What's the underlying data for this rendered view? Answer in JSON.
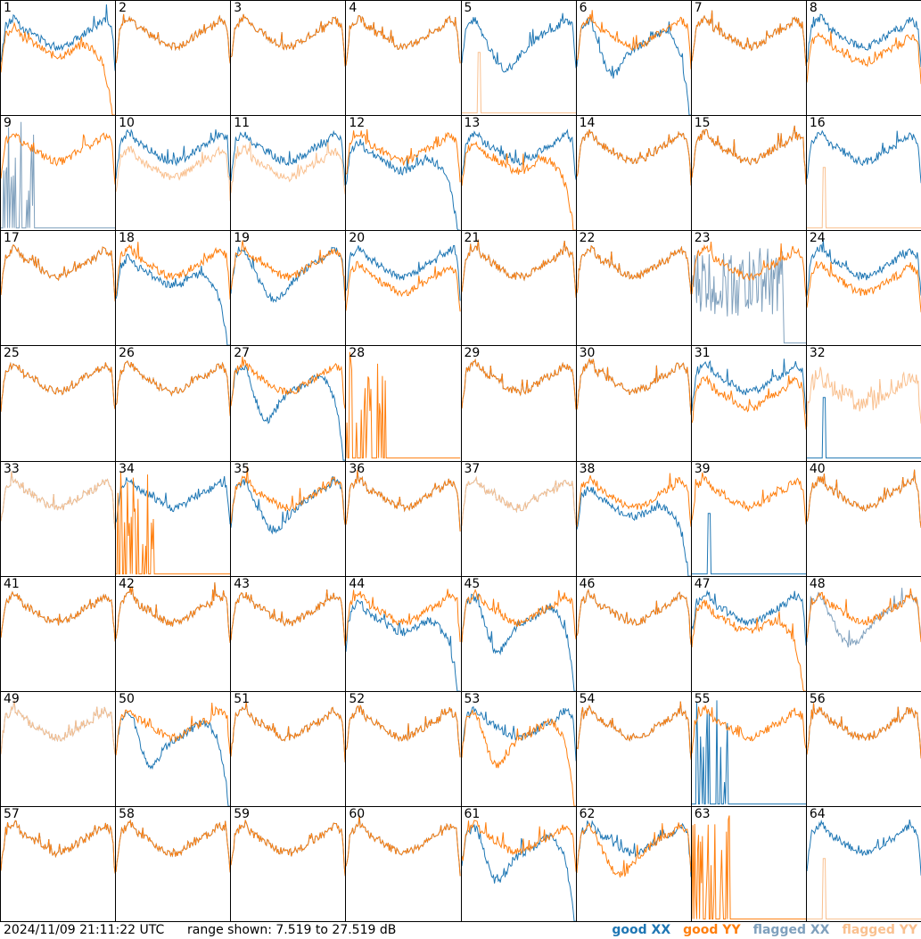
{
  "footer": {
    "timestamp": "2024/11/09 21:11:22 UTC",
    "range": "range shown: 7.519 to 27.519 dB"
  },
  "legend": {
    "good_xx": "good XX",
    "good_yy": "good YY",
    "flagged_xx": "flagged XX",
    "flagged_yy": "flagged YY"
  },
  "colors": {
    "good_xx": "#1f77b4",
    "good_yy": "#ff7f0e",
    "flagged_xx": "#7fa0bd",
    "flagged_yy": "#f9c08f"
  },
  "chart_data": {
    "type": "line",
    "grid": {
      "rows": 8,
      "cols": 8
    },
    "y_range_db": [
      7.519,
      27.519
    ],
    "panels": [
      {
        "id": "1",
        "xx": "good",
        "yy": "good",
        "yy_shape": "rolloff",
        "xx_shape": "normal"
      },
      {
        "id": "2",
        "xx": "good",
        "yy": "good"
      },
      {
        "id": "3",
        "xx": "good",
        "yy": "good"
      },
      {
        "id": "4",
        "xx": "good",
        "yy": "good"
      },
      {
        "id": "5",
        "xx": "good",
        "yy": "flagged",
        "xx_shape": "dip",
        "yy_shape": "spike"
      },
      {
        "id": "6",
        "xx": "good",
        "yy": "good",
        "xx_shape": "dip_rolloff"
      },
      {
        "id": "7",
        "xx": "good",
        "yy": "good"
      },
      {
        "id": "8",
        "xx": "good",
        "yy": "good",
        "yy_shape": "low"
      },
      {
        "id": "9",
        "xx": "flagged",
        "yy": "good",
        "xx_shape": "spikes"
      },
      {
        "id": "10",
        "xx": "good",
        "yy": "flagged",
        "yy_shape": "low"
      },
      {
        "id": "11",
        "xx": "good",
        "yy": "flagged",
        "yy_shape": "low"
      },
      {
        "id": "12",
        "xx": "good",
        "yy": "good",
        "xx_shape": "rolloff"
      },
      {
        "id": "13",
        "xx": "good",
        "yy": "good",
        "yy_shape": "rolloff"
      },
      {
        "id": "14",
        "xx": "good",
        "yy": "good"
      },
      {
        "id": "15",
        "xx": "good",
        "yy": "good"
      },
      {
        "id": "16",
        "xx": "good",
        "yy": "flagged",
        "yy_shape": "spike"
      },
      {
        "id": "17",
        "xx": "good",
        "yy": "good"
      },
      {
        "id": "18",
        "xx": "good",
        "yy": "good",
        "xx_shape": "rolloff"
      },
      {
        "id": "19",
        "xx": "good",
        "yy": "good",
        "xx_shape": "dip"
      },
      {
        "id": "20",
        "xx": "good",
        "yy": "good",
        "yy_shape": "low"
      },
      {
        "id": "21",
        "xx": "good",
        "yy": "good"
      },
      {
        "id": "22",
        "xx": "good",
        "yy": "good"
      },
      {
        "id": "23",
        "xx": "flagged",
        "yy": "good",
        "xx_shape": "noise"
      },
      {
        "id": "24",
        "xx": "good",
        "yy": "good",
        "yy_shape": "low"
      },
      {
        "id": "25",
        "xx": "good",
        "yy": "good"
      },
      {
        "id": "26",
        "xx": "good",
        "yy": "good"
      },
      {
        "id": "27",
        "xx": "good",
        "yy": "good",
        "xx_shape": "dip_rolloff"
      },
      {
        "id": "28",
        "xx": "none",
        "yy": "good",
        "yy_shape": "spikes"
      },
      {
        "id": "29",
        "xx": "good",
        "yy": "good"
      },
      {
        "id": "30",
        "xx": "good",
        "yy": "good"
      },
      {
        "id": "31",
        "xx": "good",
        "yy": "good",
        "yy_shape": "low"
      },
      {
        "id": "32",
        "xx": "good",
        "yy": "flagged",
        "xx_shape": "spike",
        "yy_shape": "noisy"
      },
      {
        "id": "33",
        "xx": "flagged",
        "yy": "flagged"
      },
      {
        "id": "34",
        "xx": "good",
        "yy": "good",
        "yy_shape": "spikes"
      },
      {
        "id": "35",
        "xx": "good",
        "yy": "good",
        "xx_shape": "dip"
      },
      {
        "id": "36",
        "xx": "good",
        "yy": "good"
      },
      {
        "id": "37",
        "xx": "flagged",
        "yy": "flagged"
      },
      {
        "id": "38",
        "xx": "good",
        "yy": "good",
        "xx_shape": "rolloff"
      },
      {
        "id": "39",
        "xx": "good",
        "yy": "good",
        "xx_shape": "spike"
      },
      {
        "id": "40",
        "xx": "good",
        "yy": "good"
      },
      {
        "id": "41",
        "xx": "good",
        "yy": "good"
      },
      {
        "id": "42",
        "xx": "good",
        "yy": "good"
      },
      {
        "id": "43",
        "xx": "good",
        "yy": "good"
      },
      {
        "id": "44",
        "xx": "good",
        "yy": "good",
        "xx_shape": "rolloff"
      },
      {
        "id": "45",
        "xx": "good",
        "yy": "good",
        "xx_shape": "dip_rolloff"
      },
      {
        "id": "46",
        "xx": "good",
        "yy": "good"
      },
      {
        "id": "47",
        "xx": "good",
        "yy": "good",
        "yy_shape": "rolloff"
      },
      {
        "id": "48",
        "xx": "flagged",
        "yy": "good",
        "xx_shape": "dip"
      },
      {
        "id": "49",
        "xx": "flagged",
        "yy": "flagged"
      },
      {
        "id": "50",
        "xx": "good",
        "yy": "good",
        "xx_shape": "dip_rolloff"
      },
      {
        "id": "51",
        "xx": "good",
        "yy": "good"
      },
      {
        "id": "52",
        "xx": "good",
        "yy": "good"
      },
      {
        "id": "53",
        "xx": "good",
        "yy": "good",
        "yy_shape": "dip_rolloff"
      },
      {
        "id": "54",
        "xx": "good",
        "yy": "good"
      },
      {
        "id": "55",
        "xx": "good",
        "yy": "good",
        "xx_shape": "spikes"
      },
      {
        "id": "56",
        "xx": "good",
        "yy": "good"
      },
      {
        "id": "57",
        "xx": "good",
        "yy": "good"
      },
      {
        "id": "58",
        "xx": "good",
        "yy": "good"
      },
      {
        "id": "59",
        "xx": "good",
        "yy": "good"
      },
      {
        "id": "60",
        "xx": "good",
        "yy": "good"
      },
      {
        "id": "61",
        "xx": "good",
        "yy": "good",
        "xx_shape": "dip_rolloff"
      },
      {
        "id": "62",
        "xx": "good",
        "yy": "good",
        "yy_shape": "dip"
      },
      {
        "id": "63",
        "xx": "none",
        "yy": "good",
        "yy_shape": "spikes"
      },
      {
        "id": "64",
        "xx": "good",
        "yy": "flagged",
        "yy_shape": "spike"
      }
    ]
  }
}
